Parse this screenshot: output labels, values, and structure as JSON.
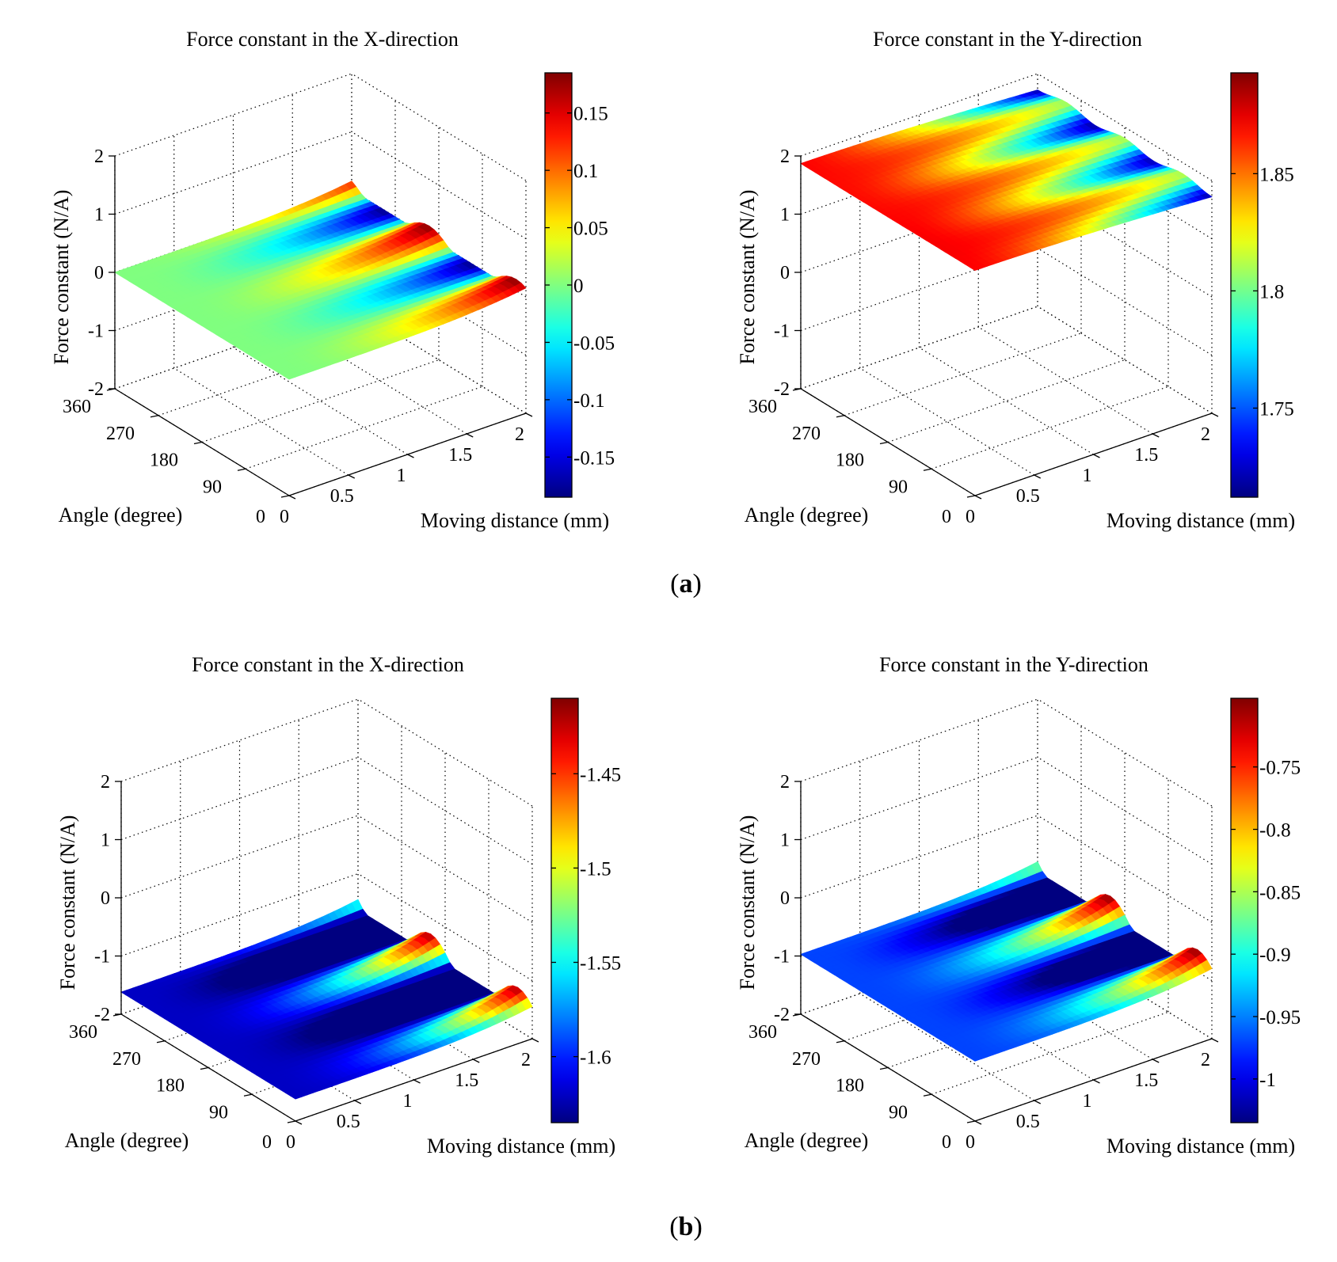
{
  "figure": {
    "panel_labels": [
      {
        "open": "(",
        "letter": "a",
        "close": ")"
      },
      {
        "open": "(",
        "letter": "b",
        "close": ")"
      }
    ]
  },
  "chart_data": [
    {
      "type": "surface",
      "panel": "a",
      "title": "Force constant in the X-direction",
      "xlabel": "Moving distance (mm)",
      "ylabel": "Angle (degree)",
      "zlabel": "Force constant (N/A)",
      "xlim": [
        0,
        2
      ],
      "ylim": [
        0,
        360
      ],
      "zlim": [
        -2,
        2
      ],
      "xticks": [
        "0",
        "0.5",
        "1",
        "1.5",
        "2"
      ],
      "yticks": [
        "0",
        "90",
        "180",
        "270",
        "360"
      ],
      "zticks": [
        "-2",
        "-1",
        "0",
        "1",
        "2"
      ],
      "colorbar": {
        "range": [
          -0.185,
          0.185
        ],
        "ticks": [
          0.15,
          0.1,
          0.05,
          0,
          -0.05,
          -0.1,
          -0.15
        ],
        "tick_labels": [
          "0.15",
          "0.1",
          "0.05",
          "0",
          "-0.05",
          "-0.1",
          "-0.15"
        ]
      },
      "surface": {
        "base": 0,
        "amplitude": 0.18,
        "bump_height": 0.2,
        "angle_waves": [
          {
            "k": 2,
            "phase": 200,
            "amp": 1.0
          }
        ],
        "dist_profile": "rise_at_end"
      }
    },
    {
      "type": "surface",
      "panel": "a",
      "title": "Force constant in the Y-direction",
      "xlabel": "Moving distance (mm)",
      "ylabel": "Angle (degree)",
      "zlabel": "Force constant (N/A)",
      "xlim": [
        0,
        2
      ],
      "ylim": [
        0,
        360
      ],
      "zlim": [
        -2,
        2
      ],
      "xticks": [
        "0",
        "0.5",
        "1",
        "1.5",
        "2"
      ],
      "yticks": [
        "0",
        "90",
        "180",
        "270",
        "360"
      ],
      "zticks": [
        "-2",
        "-1",
        "0",
        "1",
        "2"
      ],
      "colorbar": {
        "range": [
          1.712,
          1.893
        ],
        "ticks": [
          1.85,
          1.8,
          1.75
        ],
        "tick_labels": [
          "1.85",
          "1.8",
          "1.75"
        ]
      },
      "surface": {
        "base": 1.87,
        "amplitude": 0.15,
        "bump_height": 0.0,
        "angle_waves": [
          {
            "k": 1,
            "phase": 80,
            "amp": 0.15
          }
        ],
        "dist_profile": "decline_at_end"
      }
    },
    {
      "type": "surface",
      "panel": "b",
      "title": "Force constant in the X-direction",
      "xlabel": "Moving distance (mm)",
      "ylabel": "Angle (degree)",
      "zlabel": "Force constant (N/A)",
      "xlim": [
        0,
        2
      ],
      "ylim": [
        0,
        360
      ],
      "zlim": [
        -2,
        2
      ],
      "xticks": [
        "0",
        "0.5",
        "1",
        "1.5",
        "2"
      ],
      "yticks": [
        "0",
        "90",
        "180",
        "270",
        "360"
      ],
      "zticks": [
        "-2",
        "-1",
        "0",
        "1",
        "2"
      ],
      "colorbar": {
        "range": [
          -1.635,
          -1.41
        ],
        "ticks": [
          -1.45,
          -1.5,
          -1.55,
          -1.6
        ],
        "tick_labels": [
          "-1.45",
          "-1.5",
          "-1.55",
          "-1.6"
        ]
      },
      "surface": {
        "base": -1.62,
        "amplitude": 0.2,
        "bump_height": 0.35,
        "angle_waves": [
          {
            "k": 2,
            "phase": 210,
            "amp": 1.0
          }
        ],
        "dist_profile": "rise_at_end"
      }
    },
    {
      "type": "surface",
      "panel": "b",
      "title": "Force constant in the Y-direction",
      "xlabel": "Moving distance (mm)",
      "ylabel": "Angle (degree)",
      "zlabel": "Force constant (N/A)",
      "xlim": [
        0,
        2
      ],
      "ylim": [
        0,
        360
      ],
      "zlim": [
        -2,
        2
      ],
      "xticks": [
        "0",
        "0.5",
        "1",
        "1.5",
        "2"
      ],
      "yticks": [
        "0",
        "90",
        "180",
        "270",
        "360"
      ],
      "zticks": [
        "-2",
        "-1",
        "0",
        "1",
        "2"
      ],
      "colorbar": {
        "range": [
          -1.035,
          -0.695
        ],
        "ticks": [
          -0.75,
          -0.8,
          -0.85,
          -0.9,
          -0.95,
          -1
        ],
        "tick_labels": [
          "-0.75",
          "-0.8",
          "-0.85",
          "-0.9",
          "-0.95",
          "-1"
        ]
      },
      "surface": {
        "base": -0.97,
        "amplitude": 0.27,
        "bump_height": 0.35,
        "angle_waves": [
          {
            "k": 2,
            "phase": 210,
            "amp": 1.0
          }
        ],
        "dist_profile": "rise_at_end"
      }
    }
  ]
}
